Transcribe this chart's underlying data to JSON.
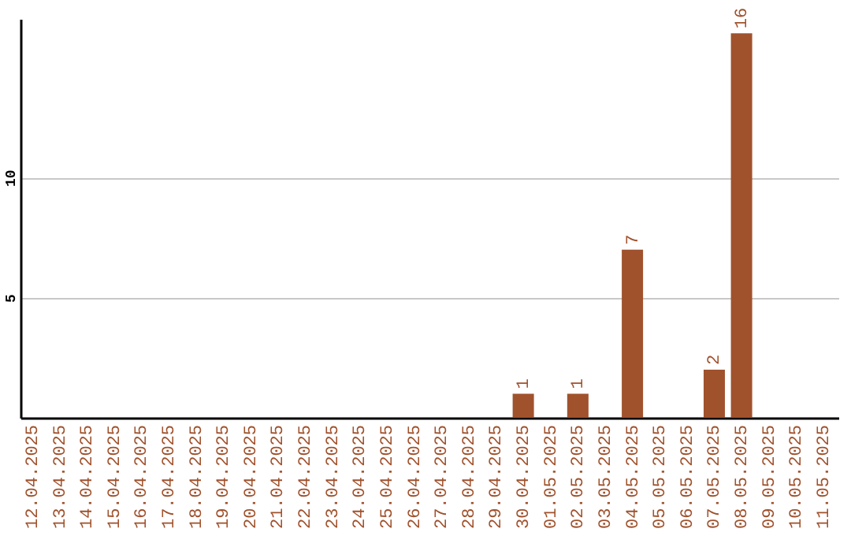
{
  "chart_data": {
    "type": "bar",
    "categories": [
      "12.04.2025",
      "13.04.2025",
      "14.04.2025",
      "15.04.2025",
      "16.04.2025",
      "17.04.2025",
      "18.04.2025",
      "19.04.2025",
      "20.04.2025",
      "21.04.2025",
      "22.04.2025",
      "23.04.2025",
      "24.04.2025",
      "25.04.2025",
      "26.04.2025",
      "27.04.2025",
      "28.04.2025",
      "29.04.2025",
      "30.04.2025",
      "01.05.2025",
      "02.05.2025",
      "03.05.2025",
      "04.05.2025",
      "05.05.2025",
      "06.05.2025",
      "07.05.2025",
      "08.05.2025",
      "09.05.2025",
      "10.05.2025",
      "11.05.2025"
    ],
    "values": [
      0,
      0,
      0,
      0,
      0,
      0,
      0,
      0,
      0,
      0,
      0,
      0,
      0,
      0,
      0,
      0,
      0,
      0,
      1,
      0,
      1,
      0,
      7,
      0,
      0,
      2,
      16,
      0,
      0,
      0
    ],
    "value_labels": [
      null,
      null,
      null,
      null,
      null,
      null,
      null,
      null,
      null,
      null,
      null,
      null,
      null,
      null,
      null,
      null,
      null,
      null,
      "1",
      null,
      "1",
      null,
      "7",
      null,
      null,
      "2",
      "16",
      null,
      null,
      null
    ],
    "color": "#a0522d",
    "ylim": [
      0,
      16.6
    ],
    "yticks": [
      5,
      10
    ],
    "grid": "y"
  }
}
